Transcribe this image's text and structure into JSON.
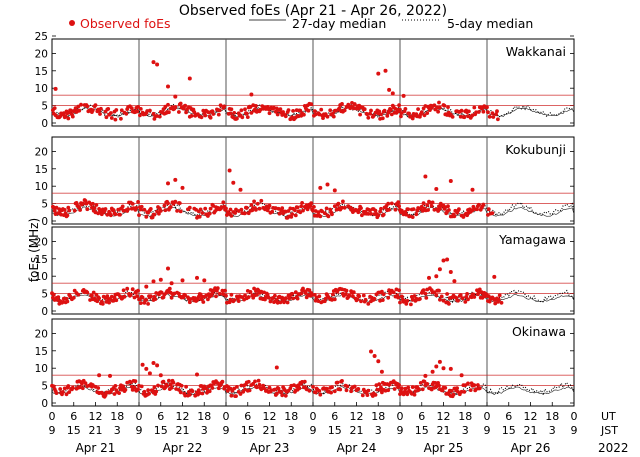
{
  "chart_data": {
    "type": "scatter",
    "title": "Observed foEs (Apr 21 - Apr 26, 2022)",
    "ylabel": "foEs (MHz)",
    "legend": {
      "observed": "Observed foEs",
      "median27": "27-day median",
      "median5": "5-day median"
    },
    "colors": {
      "observed": "#dd1111",
      "threshold": "#cc2222",
      "frame": "#000000",
      "grid": "#555555"
    },
    "ylim": [
      0,
      25
    ],
    "y_ticks": [
      0,
      5,
      10,
      15,
      20,
      25
    ],
    "threshold_lines": [
      5,
      8
    ],
    "x_range_hours": [
      0,
      144
    ],
    "day_boundaries_hours": [
      24,
      48,
      72,
      96,
      120
    ],
    "ut_ticks": [
      "0",
      "6",
      "12",
      "18",
      "0",
      "6",
      "12",
      "18",
      "0",
      "6",
      "12",
      "18",
      "0",
      "6",
      "12",
      "18",
      "0",
      "6",
      "12",
      "18",
      "0",
      "6",
      "12",
      "18",
      "0"
    ],
    "jst_ticks": [
      "9",
      "15",
      "21",
      "3",
      "9",
      "15",
      "21",
      "3",
      "9",
      "15",
      "21",
      "3",
      "9",
      "15",
      "21",
      "3",
      "9",
      "15",
      "21",
      "3",
      "9",
      "15",
      "21",
      "3",
      "9"
    ],
    "ut_label": "UT",
    "jst_label": "JST",
    "days": [
      "Apr 21",
      "Apr 22",
      "Apr 23",
      "Apr 24",
      "Apr 25",
      "Apr 26"
    ],
    "year": "2022",
    "stations": [
      {
        "name": "Wakkanai",
        "observed_hours": 123,
        "median27": [
          3.0,
          2.6,
          2.3,
          2.1,
          2.0,
          2.2,
          2.6,
          3.2,
          3.8,
          4.2,
          4.3,
          4.1,
          3.8,
          3.4,
          3.0,
          2.7,
          2.4,
          2.3,
          2.2,
          2.3,
          2.6,
          3.0,
          3.4,
          3.8,
          4.2
        ],
        "median5": [
          3.4,
          3.0,
          2.6,
          2.4,
          2.3,
          2.6,
          3.1,
          3.7,
          4.3,
          4.7,
          4.8,
          4.5,
          4.1,
          3.6,
          3.1,
          2.8,
          2.5,
          2.3,
          2.3,
          2.5,
          2.9,
          3.3,
          3.8,
          4.3,
          4.7
        ],
        "observed": [
          {
            "t": 1,
            "v": 9.8
          },
          {
            "t": 28,
            "v": 17.5
          },
          {
            "t": 29,
            "v": 16.8
          },
          {
            "t": 32,
            "v": 10.5
          },
          {
            "t": 34,
            "v": 7.6
          },
          {
            "t": 38,
            "v": 12.8
          },
          {
            "t": 55,
            "v": 8.2
          },
          {
            "t": 90,
            "v": 14.2
          },
          {
            "t": 92,
            "v": 15.0
          },
          {
            "t": 93,
            "v": 9.5
          },
          {
            "t": 94,
            "v": 8.5
          },
          {
            "t": 97,
            "v": 7.8
          }
        ]
      },
      {
        "name": "Kokubunji",
        "observed_hours": 122,
        "median27": [
          2.2,
          1.8,
          1.6,
          1.5,
          1.6,
          2.0,
          2.6,
          3.2,
          3.6,
          3.8,
          3.6,
          3.2,
          2.8,
          2.4,
          2.0,
          1.8,
          1.6,
          1.6,
          1.7,
          2.0,
          2.5,
          3.0,
          3.4,
          3.6,
          3.4
        ],
        "median5": [
          3.0,
          2.6,
          2.3,
          2.2,
          2.4,
          2.9,
          3.5,
          4.1,
          4.6,
          4.8,
          4.5,
          4.0,
          3.5,
          3.0,
          2.6,
          2.3,
          2.2,
          2.2,
          2.4,
          2.8,
          3.3,
          3.9,
          4.3,
          4.5,
          4.2
        ],
        "observed": [
          {
            "t": 32,
            "v": 10.8
          },
          {
            "t": 34,
            "v": 11.8
          },
          {
            "t": 36,
            "v": 9.5
          },
          {
            "t": 49,
            "v": 14.5
          },
          {
            "t": 50,
            "v": 11.0
          },
          {
            "t": 52,
            "v": 9.0
          },
          {
            "t": 74,
            "v": 9.5
          },
          {
            "t": 76,
            "v": 10.5
          },
          {
            "t": 78,
            "v": 8.8
          },
          {
            "t": 103,
            "v": 12.8
          },
          {
            "t": 106,
            "v": 9.2
          },
          {
            "t": 110,
            "v": 11.5
          },
          {
            "t": 116,
            "v": 9.0
          }
        ]
      },
      {
        "name": "Yamagawa",
        "observed_hours": 124,
        "median27": [
          3.2,
          3.0,
          2.9,
          2.9,
          3.1,
          3.5,
          4.0,
          4.4,
          4.6,
          4.5,
          4.2,
          3.8,
          3.4,
          3.1,
          2.9,
          2.8,
          2.8,
          3.0,
          3.3,
          3.7,
          4.1,
          4.4,
          4.5,
          4.3,
          4.0
        ],
        "median5": [
          3.8,
          3.5,
          3.3,
          3.3,
          3.6,
          4.1,
          4.7,
          5.2,
          5.4,
          5.3,
          4.9,
          4.4,
          4.0,
          3.6,
          3.3,
          3.2,
          3.3,
          3.6,
          4.0,
          4.5,
          5.0,
          5.3,
          5.3,
          5.0,
          4.6
        ],
        "observed": [
          {
            "t": 26,
            "v": 7.0
          },
          {
            "t": 28,
            "v": 8.5
          },
          {
            "t": 30,
            "v": 9.0
          },
          {
            "t": 32,
            "v": 12.2
          },
          {
            "t": 33,
            "v": 8.0
          },
          {
            "t": 36,
            "v": 8.8
          },
          {
            "t": 40,
            "v": 9.5
          },
          {
            "t": 42,
            "v": 8.8
          },
          {
            "t": 104,
            "v": 9.5
          },
          {
            "t": 106,
            "v": 10.0
          },
          {
            "t": 107,
            "v": 12.0
          },
          {
            "t": 108,
            "v": 14.5
          },
          {
            "t": 109,
            "v": 14.8
          },
          {
            "t": 110,
            "v": 11.2
          },
          {
            "t": 111,
            "v": 8.6
          },
          {
            "t": 122,
            "v": 9.8
          }
        ]
      },
      {
        "name": "Okinawa",
        "observed_hours": 118,
        "median27": [
          3.0,
          2.8,
          2.7,
          2.8,
          3.0,
          3.4,
          3.9,
          4.3,
          4.5,
          4.4,
          4.0,
          3.6,
          3.2,
          2.9,
          2.7,
          2.6,
          2.7,
          2.9,
          3.2,
          3.6,
          4.0,
          4.3,
          4.4,
          4.2,
          3.9
        ],
        "median5": [
          3.6,
          3.4,
          3.3,
          3.4,
          3.7,
          4.2,
          4.8,
          5.2,
          5.4,
          5.2,
          4.8,
          4.3,
          3.8,
          3.4,
          3.2,
          3.1,
          3.3,
          3.6,
          4.0,
          4.5,
          4.9,
          5.2,
          5.3,
          5.0,
          4.6
        ],
        "observed": [
          {
            "t": 13,
            "v": 8.0
          },
          {
            "t": 16,
            "v": 7.8
          },
          {
            "t": 25,
            "v": 11.0
          },
          {
            "t": 26,
            "v": 9.8
          },
          {
            "t": 27,
            "v": 8.5
          },
          {
            "t": 28,
            "v": 11.5
          },
          {
            "t": 29,
            "v": 10.8
          },
          {
            "t": 30,
            "v": 8.0
          },
          {
            "t": 40,
            "v": 8.2
          },
          {
            "t": 62,
            "v": 10.2
          },
          {
            "t": 88,
            "v": 14.8
          },
          {
            "t": 89,
            "v": 13.5
          },
          {
            "t": 90,
            "v": 12.0
          },
          {
            "t": 91,
            "v": 9.0
          },
          {
            "t": 103,
            "v": 7.8
          },
          {
            "t": 105,
            "v": 9.0
          },
          {
            "t": 106,
            "v": 10.5
          },
          {
            "t": 107,
            "v": 11.8
          },
          {
            "t": 108,
            "v": 10.0
          },
          {
            "t": 110,
            "v": 9.8
          },
          {
            "t": 113,
            "v": 8.0
          }
        ]
      }
    ]
  }
}
